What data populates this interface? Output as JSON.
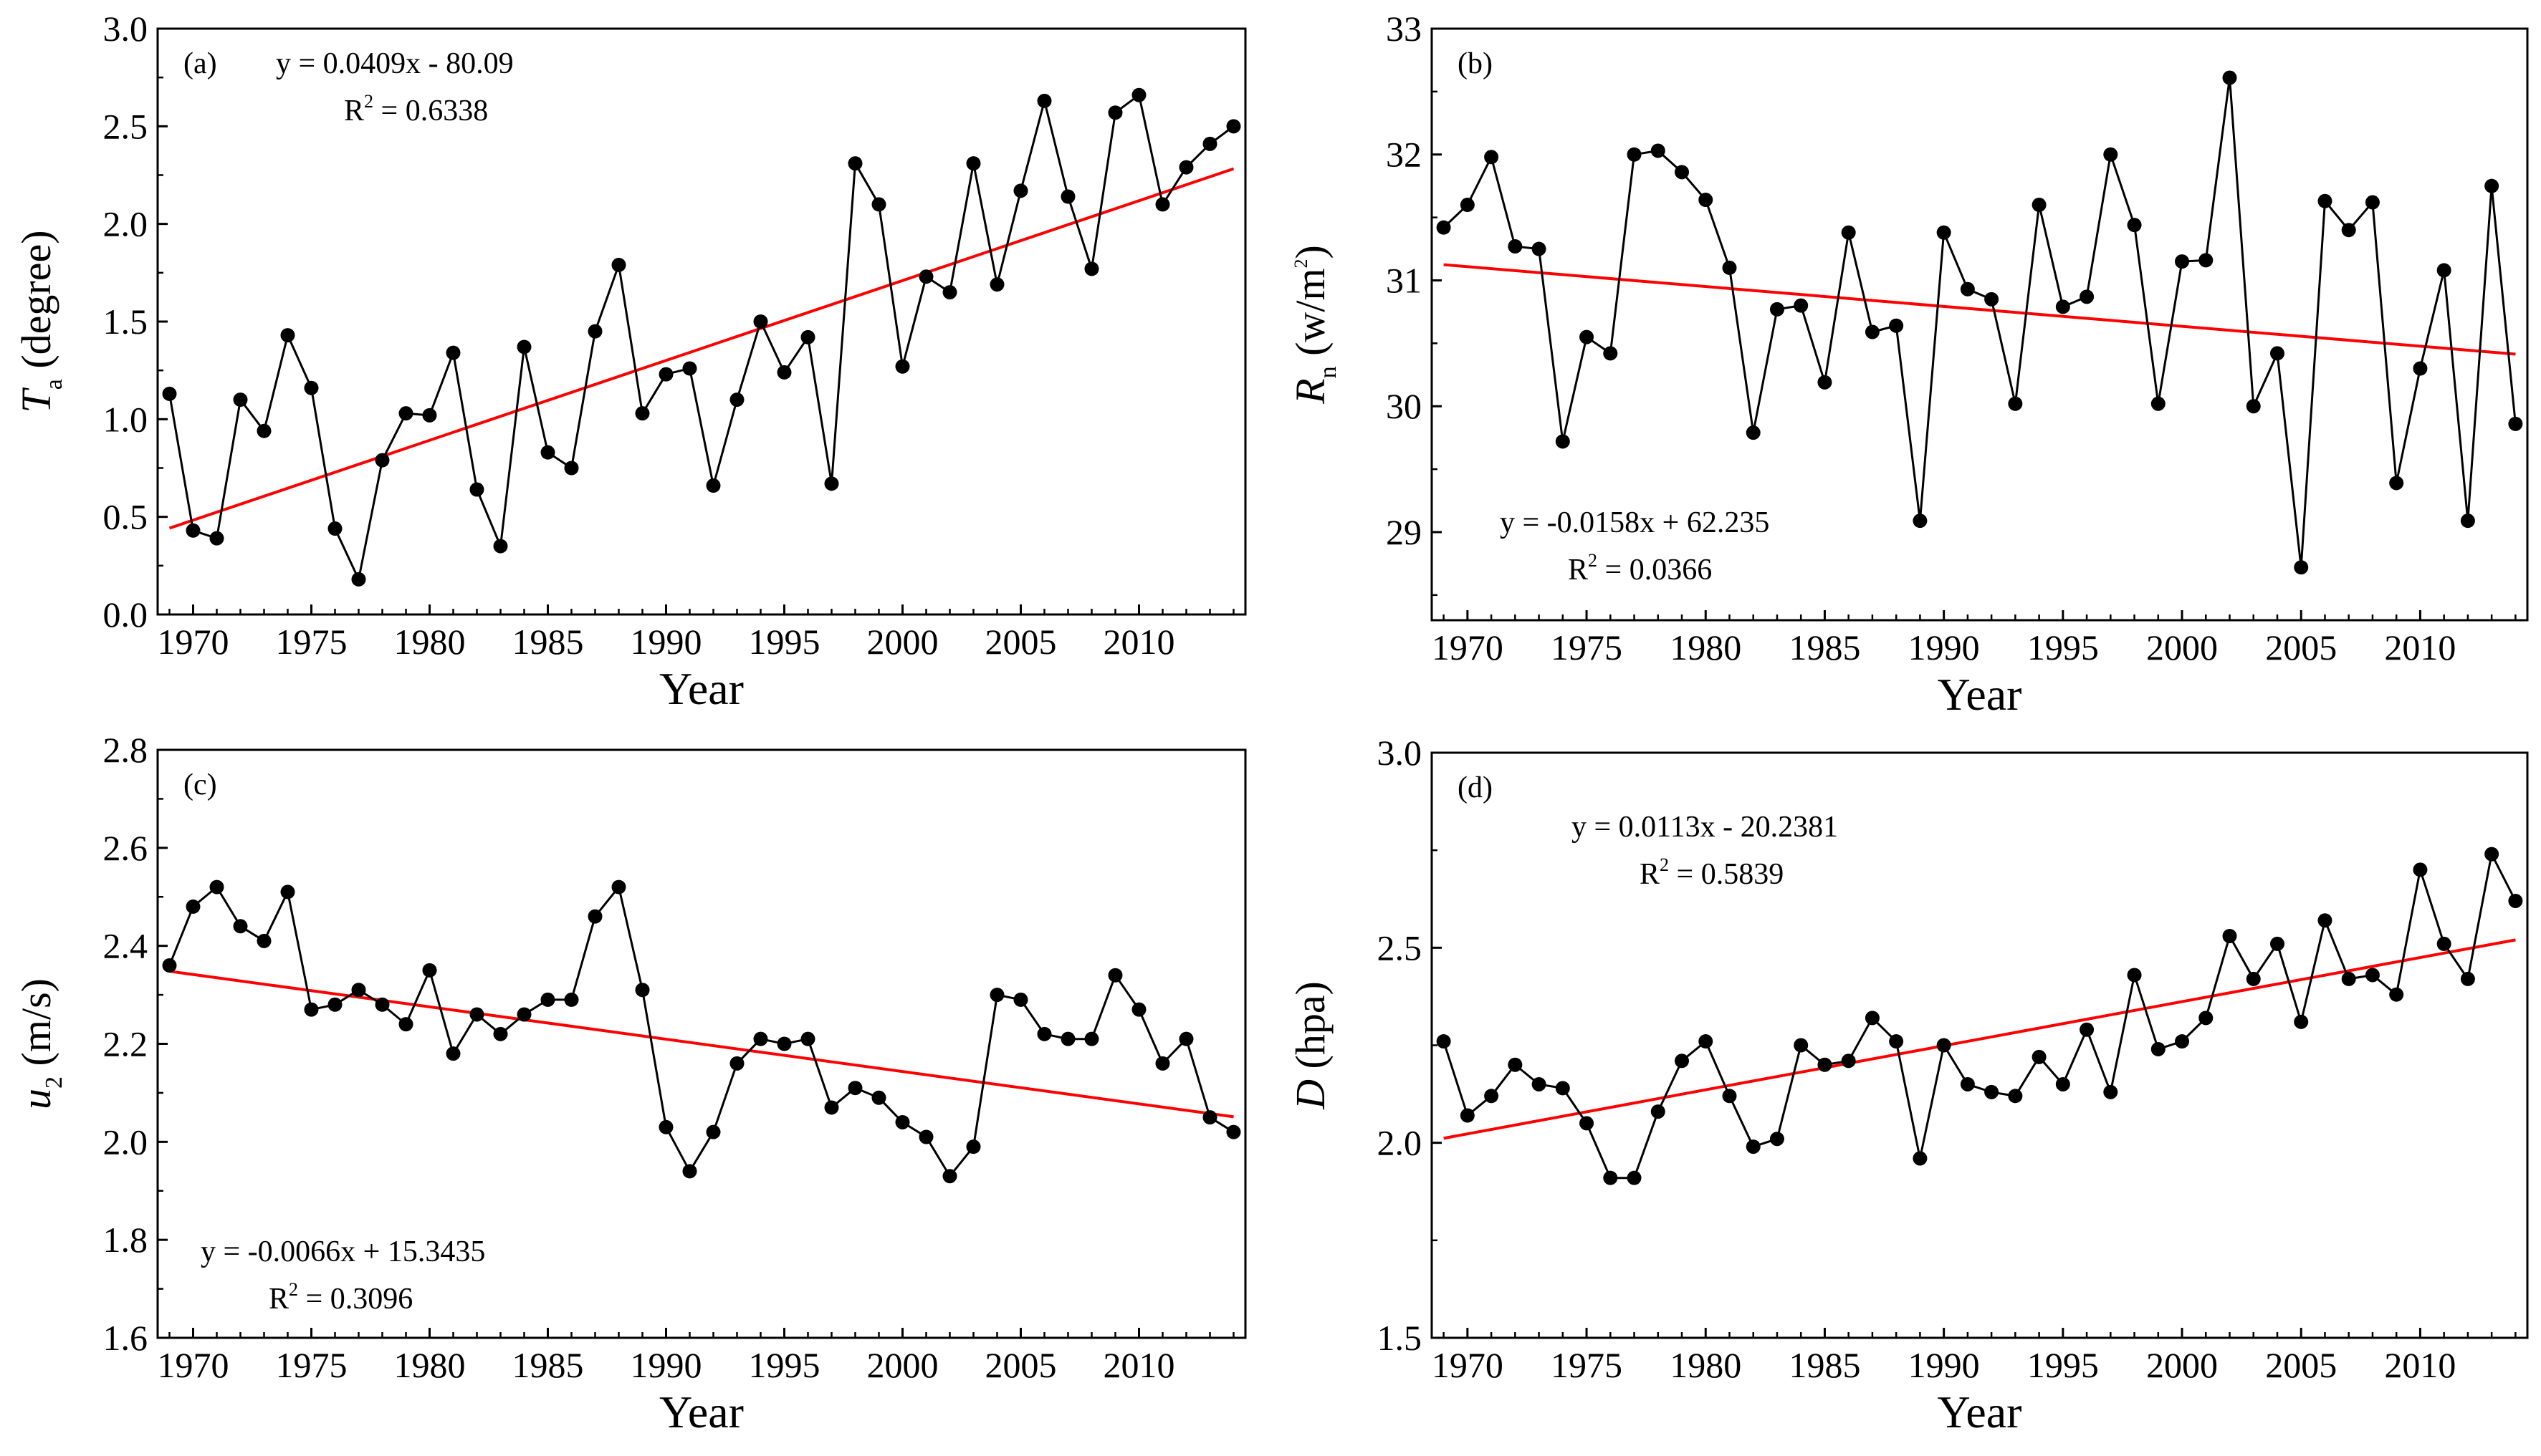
{
  "chart_data": [
    {
      "type": "line",
      "panel": "(a)",
      "xlabel": "Year",
      "ylabel": {
        "main": "T",
        "sub": "a",
        "unit": " (degree)"
      },
      "xlim": [
        1968.5,
        2014.5
      ],
      "ylim": [
        0.0,
        3.0
      ],
      "xticks": [
        1970,
        1975,
        1980,
        1985,
        1990,
        1995,
        2000,
        2005,
        2010
      ],
      "xtick_labels": [
        "1970",
        "1975",
        "1980",
        "1985",
        "1990",
        "1995",
        "2000",
        "2005",
        "2010"
      ],
      "yticks": [
        0.0,
        0.5,
        1.0,
        1.5,
        2.0,
        2.5,
        3.0
      ],
      "ytick_labels": [
        "0.0",
        "0.5",
        "1.0",
        "1.5",
        "2.0",
        "2.5",
        "3.0"
      ],
      "equation": "y = 0.0409x - 80.09",
      "r2": {
        "prefix": "R",
        "sup": "2",
        "value": " = 0.6338"
      },
      "trend": {
        "slope": 0.0409,
        "intercept": -80.09,
        "color": "#ff0000"
      },
      "label_pos": {
        "panel": "top-left",
        "equation": "top-left"
      },
      "x": [
        1969,
        1970,
        1971,
        1972,
        1973,
        1974,
        1975,
        1976,
        1977,
        1978,
        1979,
        1980,
        1981,
        1982,
        1983,
        1984,
        1985,
        1986,
        1987,
        1988,
        1989,
        1990,
        1991,
        1992,
        1993,
        1994,
        1995,
        1996,
        1997,
        1998,
        1999,
        2000,
        2001,
        2002,
        2003,
        2004,
        2005,
        2006,
        2007,
        2008,
        2009,
        2010,
        2011,
        2012,
        2013,
        2014
      ],
      "values": [
        1.13,
        0.43,
        0.39,
        1.1,
        0.94,
        1.43,
        1.16,
        0.44,
        0.18,
        0.79,
        1.03,
        1.02,
        1.34,
        0.64,
        0.35,
        1.37,
        0.83,
        0.75,
        1.45,
        1.79,
        1.03,
        1.23,
        1.26,
        0.66,
        1.1,
        1.5,
        1.24,
        1.42,
        0.67,
        2.31,
        2.1,
        1.27,
        1.73,
        1.65,
        2.31,
        1.69,
        2.17,
        2.63,
        2.14,
        1.77,
        2.57,
        2.66,
        2.1,
        2.29,
        2.41,
        2.5
      ]
    },
    {
      "type": "line",
      "panel": "(b)",
      "xlabel": "Year",
      "ylabel": {
        "main": "R",
        "sub": "n",
        "unit": " (w/m",
        "unit_sup": "2",
        "unit_end": ")"
      },
      "xlim": [
        1968.5,
        2014.5
      ],
      "ylim": [
        28.3,
        33.0
      ],
      "xticks": [
        1970,
        1975,
        1980,
        1985,
        1990,
        1995,
        2000,
        2005,
        2010
      ],
      "xtick_labels": [
        "1970",
        "1975",
        "1980",
        "1985",
        "1990",
        "1995",
        "2000",
        "2005",
        "2010"
      ],
      "yticks": [
        29,
        30,
        31,
        32,
        33
      ],
      "ytick_labels": [
        "29",
        "30",
        "31",
        "32",
        "33"
      ],
      "equation": "y = -0.0158x + 62.235",
      "r2": {
        "prefix": "R",
        "sup": "2",
        "value": " = 0.0366"
      },
      "trend": {
        "slope": -0.0158,
        "intercept": 62.235,
        "color": "#ff0000"
      },
      "label_pos": {
        "panel": "top-left",
        "equation": "bottom-left"
      },
      "x": [
        1969,
        1970,
        1971,
        1972,
        1973,
        1974,
        1975,
        1976,
        1977,
        1978,
        1979,
        1980,
        1981,
        1982,
        1983,
        1984,
        1985,
        1986,
        1987,
        1988,
        1989,
        1990,
        1991,
        1992,
        1993,
        1994,
        1995,
        1996,
        1997,
        1998,
        1999,
        2000,
        2001,
        2002,
        2003,
        2004,
        2005,
        2006,
        2007,
        2008,
        2009,
        2010,
        2011,
        2012,
        2013,
        2014
      ],
      "values": [
        31.42,
        31.6,
        31.98,
        31.27,
        31.25,
        29.72,
        30.55,
        30.42,
        32.0,
        32.03,
        31.86,
        31.64,
        31.1,
        29.79,
        30.77,
        30.8,
        30.19,
        31.38,
        30.59,
        30.64,
        29.09,
        31.38,
        30.93,
        30.85,
        30.02,
        31.6,
        30.79,
        30.87,
        32.0,
        31.44,
        30.02,
        31.15,
        31.16,
        32.61,
        30.0,
        30.42,
        28.72,
        31.63,
        31.4,
        31.62,
        29.39,
        30.3,
        31.08,
        29.09,
        31.75,
        29.86
      ]
    },
    {
      "type": "line",
      "panel": "(c)",
      "xlabel": "Year",
      "ylabel": {
        "main": "u",
        "sub": "2",
        "unit": " (m/s)"
      },
      "xlim": [
        1968.5,
        2014.5
      ],
      "ylim": [
        1.6,
        2.8
      ],
      "xticks": [
        1970,
        1975,
        1980,
        1985,
        1990,
        1995,
        2000,
        2005,
        2010
      ],
      "xtick_labels": [
        "1970",
        "1975",
        "1980",
        "1985",
        "1990",
        "1995",
        "2000",
        "2005",
        "2010"
      ],
      "yticks": [
        1.6,
        1.8,
        2.0,
        2.2,
        2.4,
        2.6,
        2.8
      ],
      "ytick_labels": [
        "1.6",
        "1.8",
        "2.0",
        "2.2",
        "2.4",
        "2.6",
        "2.8"
      ],
      "equation": "y = -0.0066x + 15.3435",
      "r2": {
        "prefix": "R",
        "sup": "2",
        "value": " = 0.3096"
      },
      "trend": {
        "slope": -0.0066,
        "intercept": 15.3435,
        "color": "#ff0000"
      },
      "label_pos": {
        "panel": "top-left",
        "equation": "bottom-left"
      },
      "x": [
        1969,
        1970,
        1971,
        1972,
        1973,
        1974,
        1975,
        1976,
        1977,
        1978,
        1979,
        1980,
        1981,
        1982,
        1983,
        1984,
        1985,
        1986,
        1987,
        1988,
        1989,
        1990,
        1991,
        1992,
        1993,
        1994,
        1995,
        1996,
        1997,
        1998,
        1999,
        2000,
        2001,
        2002,
        2003,
        2004,
        2005,
        2006,
        2007,
        2008,
        2009,
        2010,
        2011,
        2012,
        2013,
        2014
      ],
      "values": [
        2.36,
        2.48,
        2.52,
        2.44,
        2.41,
        2.51,
        2.27,
        2.28,
        2.31,
        2.28,
        2.24,
        2.35,
        2.18,
        2.26,
        2.22,
        2.26,
        2.29,
        2.29,
        2.46,
        2.52,
        2.31,
        2.03,
        1.94,
        2.02,
        2.16,
        2.21,
        2.2,
        2.21,
        2.07,
        2.11,
        2.09,
        2.04,
        2.01,
        1.93,
        1.99,
        2.3,
        2.29,
        2.22,
        2.21,
        2.21,
        2.34,
        2.27,
        2.16,
        2.21,
        2.05,
        2.02
      ]
    },
    {
      "type": "line",
      "panel": "(d)",
      "xlabel": "Year",
      "ylabel": {
        "main": "D",
        "sub": "",
        "unit": " (hpa)"
      },
      "xlim": [
        1968.5,
        2014.5
      ],
      "ylim": [
        1.5,
        3.0
      ],
      "xticks": [
        1970,
        1975,
        1980,
        1985,
        1990,
        1995,
        2000,
        2005,
        2010
      ],
      "xtick_labels": [
        "1970",
        "1975",
        "1980",
        "1985",
        "1990",
        "1995",
        "2000",
        "2005",
        "2010"
      ],
      "yticks": [
        1.5,
        2.0,
        2.5,
        3.0
      ],
      "ytick_labels": [
        "1.5",
        "2.0",
        "2.5",
        "3.0"
      ],
      "equation": "y = 0.0113x - 20.2381",
      "r2": {
        "prefix": "R",
        "sup": "2",
        "value": " = 0.5839"
      },
      "trend": {
        "slope": 0.0113,
        "intercept": -20.2381,
        "color": "#ff0000"
      },
      "label_pos": {
        "panel": "top-left",
        "equation": "top-left"
      },
      "x": [
        1969,
        1970,
        1971,
        1972,
        1973,
        1974,
        1975,
        1976,
        1977,
        1978,
        1979,
        1980,
        1981,
        1982,
        1983,
        1984,
        1985,
        1986,
        1987,
        1988,
        1989,
        1990,
        1991,
        1992,
        1993,
        1994,
        1995,
        1996,
        1997,
        1998,
        1999,
        2000,
        2001,
        2002,
        2003,
        2004,
        2005,
        2006,
        2007,
        2008,
        2009,
        2010,
        2011,
        2012,
        2013,
        2014
      ],
      "values": [
        2.26,
        2.07,
        2.12,
        2.2,
        2.15,
        2.14,
        2.05,
        1.91,
        1.91,
        2.08,
        2.21,
        2.26,
        2.12,
        1.99,
        2.01,
        2.25,
        2.2,
        2.21,
        2.32,
        2.26,
        1.96,
        2.25,
        2.15,
        2.13,
        2.12,
        2.22,
        2.15,
        2.29,
        2.13,
        2.43,
        2.24,
        2.26,
        2.32,
        2.53,
        2.42,
        2.51,
        2.31,
        2.57,
        2.42,
        2.43,
        2.38,
        2.7,
        2.51,
        2.42,
        2.74,
        2.62
      ]
    }
  ]
}
